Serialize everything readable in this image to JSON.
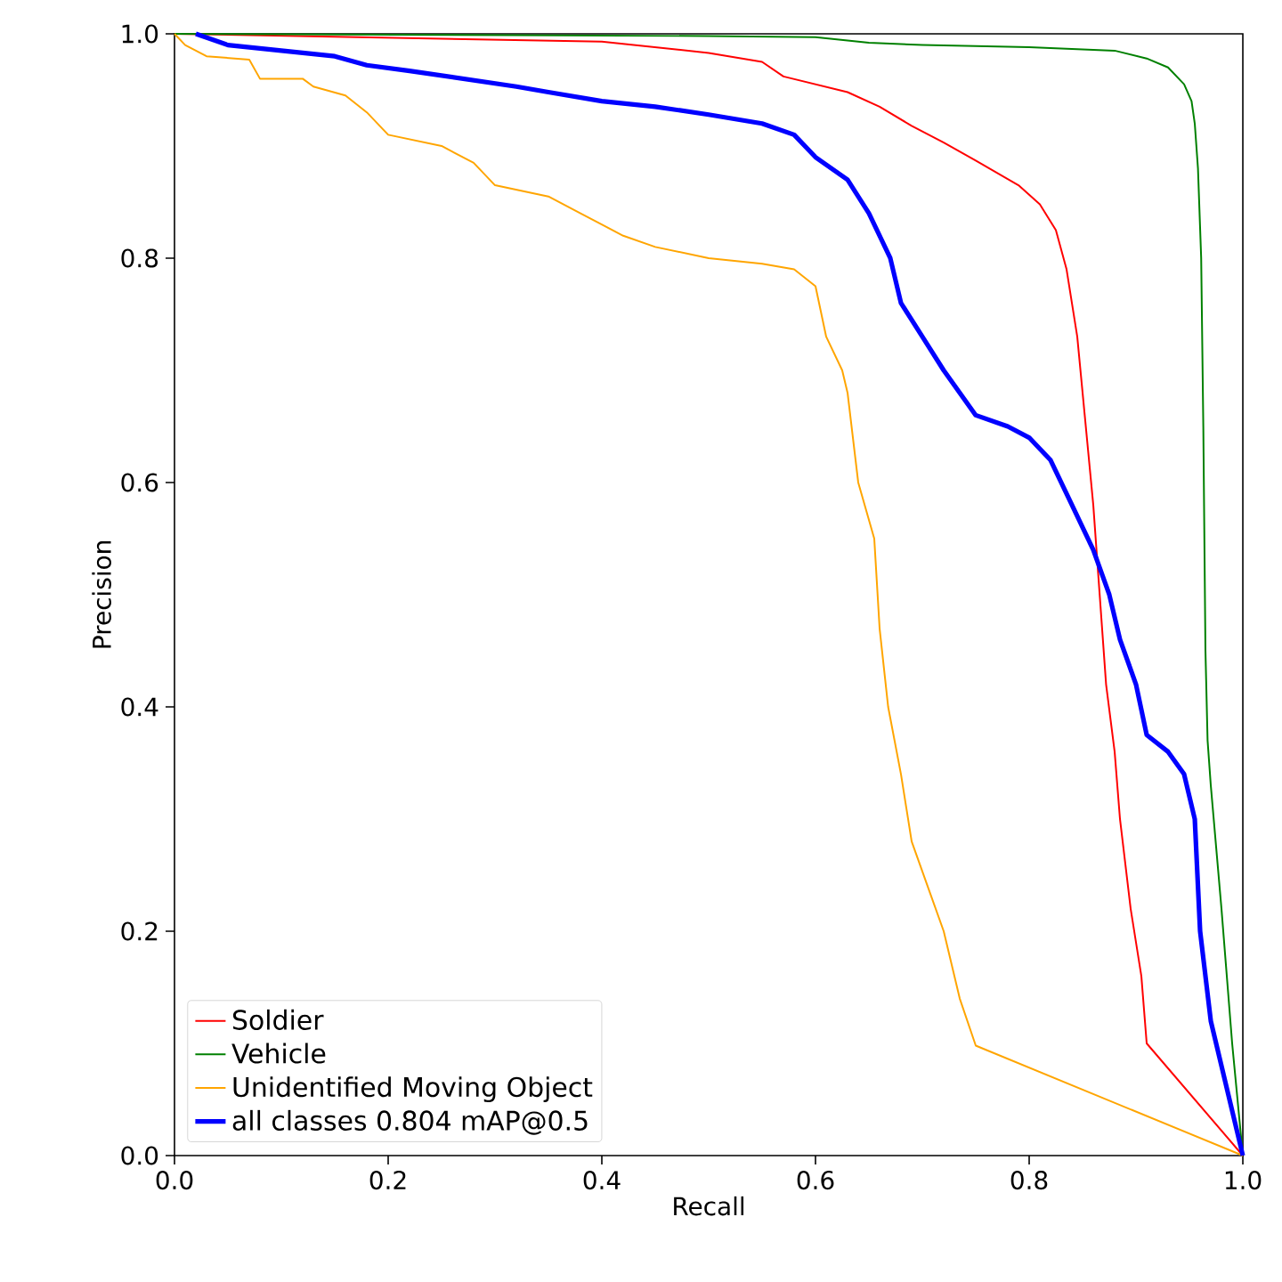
{
  "chart_data": {
    "type": "line",
    "xlabel": "Recall",
    "ylabel": "Precision",
    "xlim": [
      0,
      1
    ],
    "ylim": [
      0,
      1
    ],
    "xticks": [
      {
        "value": 0,
        "label": "0.0"
      },
      0.2,
      0.4,
      0.6,
      0.8,
      {
        "value": 1,
        "label": "1.0"
      }
    ],
    "yticks": [
      {
        "value": 0,
        "label": "0.0"
      },
      0.2,
      0.4,
      0.6,
      0.8,
      {
        "value": 1,
        "label": "1.0"
      }
    ],
    "legend": "bottom left",
    "grid": false,
    "marker": "none",
    "line_style": "solid",
    "series": [
      {
        "name": "Soldier",
        "color": "#ff0000",
        "x": [
          0,
          0.4,
          0.5,
          0.55,
          0.57,
          0.63,
          0.66,
          0.69,
          0.72,
          0.75,
          0.79,
          0.81,
          0.825,
          0.835,
          0.845,
          0.852,
          0.86,
          0.866,
          0.872,
          0.88,
          0.885,
          0.895,
          0.905,
          0.91,
          1.0
        ],
        "values": [
          1.0,
          0.993,
          0.983,
          0.975,
          0.962,
          0.948,
          0.935,
          0.918,
          0.903,
          0.887,
          0.865,
          0.848,
          0.825,
          0.79,
          0.73,
          0.66,
          0.58,
          0.5,
          0.42,
          0.36,
          0.3,
          0.22,
          0.16,
          0.1,
          0.0
        ]
      },
      {
        "name": "Vehicle",
        "color": "#008000",
        "x": [
          0,
          0.5,
          0.6,
          0.65,
          0.7,
          0.8,
          0.88,
          0.91,
          0.93,
          0.945,
          0.952,
          0.955,
          0.958,
          0.961,
          0.963,
          0.965,
          0.967,
          0.97,
          0.98,
          0.99,
          1.0
        ],
        "values": [
          1.0,
          0.998,
          0.997,
          0.992,
          0.99,
          0.988,
          0.985,
          0.978,
          0.97,
          0.955,
          0.94,
          0.92,
          0.88,
          0.8,
          0.65,
          0.45,
          0.37,
          0.33,
          0.22,
          0.1,
          0.0
        ]
      },
      {
        "name": "Unidentified Moving Object",
        "color": "#ffa500",
        "x": [
          0.0,
          0.01,
          0.03,
          0.07,
          0.08,
          0.12,
          0.13,
          0.16,
          0.18,
          0.2,
          0.25,
          0.28,
          0.3,
          0.35,
          0.38,
          0.42,
          0.45,
          0.5,
          0.55,
          0.58,
          0.6,
          0.61,
          0.625,
          0.63,
          0.64,
          0.655,
          0.66,
          0.668,
          0.68,
          0.69,
          0.705,
          0.72,
          0.735,
          0.75,
          1.0
        ],
        "values": [
          1.0,
          0.99,
          0.98,
          0.977,
          0.96,
          0.96,
          0.953,
          0.945,
          0.93,
          0.91,
          0.9,
          0.885,
          0.865,
          0.855,
          0.84,
          0.82,
          0.81,
          0.8,
          0.795,
          0.79,
          0.775,
          0.73,
          0.7,
          0.68,
          0.6,
          0.55,
          0.47,
          0.4,
          0.34,
          0.28,
          0.24,
          0.2,
          0.14,
          0.098,
          0.0
        ]
      },
      {
        "name": "all classes 0.804 mAP@0.5",
        "color": "#0000ff",
        "x": [
          0.02,
          0.05,
          0.1,
          0.15,
          0.18,
          0.22,
          0.27,
          0.32,
          0.35,
          0.4,
          0.45,
          0.5,
          0.55,
          0.58,
          0.6,
          0.63,
          0.65,
          0.67,
          0.68,
          0.7,
          0.72,
          0.735,
          0.75,
          0.78,
          0.8,
          0.82,
          0.84,
          0.86,
          0.875,
          0.885,
          0.9,
          0.91,
          0.93,
          0.945,
          0.955,
          0.96,
          0.97,
          1.0
        ],
        "values": [
          1.0,
          0.99,
          0.985,
          0.98,
          0.972,
          0.967,
          0.96,
          0.953,
          0.948,
          0.94,
          0.935,
          0.928,
          0.92,
          0.91,
          0.89,
          0.87,
          0.84,
          0.8,
          0.76,
          0.73,
          0.7,
          0.68,
          0.66,
          0.65,
          0.64,
          0.62,
          0.58,
          0.54,
          0.5,
          0.46,
          0.42,
          0.375,
          0.36,
          0.34,
          0.3,
          0.2,
          0.12,
          0.0
        ]
      }
    ]
  }
}
